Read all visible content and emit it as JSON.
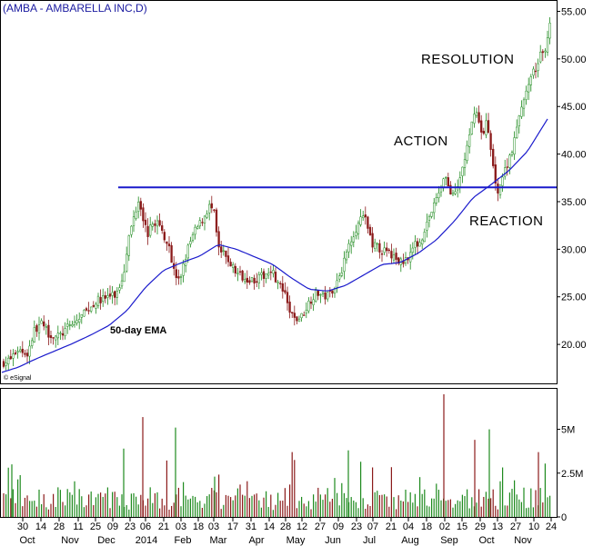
{
  "chart_data": {
    "type": "candlestick",
    "title": "(AMBA - AMBARELLA INC,D)",
    "source": "© eSignal",
    "price_axis": {
      "ylim": [
        16.0,
        56.0
      ],
      "ticks": [
        20,
        25,
        30,
        35,
        40,
        45,
        50,
        55
      ],
      "tick_labels": [
        "20.00",
        "25.00",
        "30.00",
        "35.00",
        "40.00",
        "45.00",
        "50.00",
        "55.00"
      ]
    },
    "volume_axis": {
      "ylim": [
        0,
        7000000
      ],
      "ticks": [
        0,
        2500000,
        5000000
      ],
      "tick_labels": [
        "0",
        "2.5M",
        "5M"
      ]
    },
    "x_day_labels": [
      "30",
      "14",
      "28",
      "11",
      "25",
      "09",
      "23",
      "06",
      "21",
      "03",
      "18",
      "03",
      "17",
      "31",
      "14",
      "28",
      "12",
      "27",
      "09",
      "23",
      "07",
      "21",
      "04",
      "18",
      "02",
      "15",
      "29",
      "13",
      "27",
      "10",
      "24"
    ],
    "x_month_labels": [
      "Oct",
      "Nov",
      "Dec",
      "2014",
      "Feb",
      "Mar",
      "Apr",
      "May",
      "Jun",
      "Jul",
      "Aug",
      "Sep",
      "Oct",
      "Nov"
    ],
    "resistance_line": {
      "value": 36.5
    },
    "annotations": [
      "RESOLUTION",
      "ACTION",
      "REACTION",
      "50-day EMA"
    ],
    "colors": {
      "up": "#1e8a1e",
      "down": "#8b1a1a",
      "ema": "#1a1acc",
      "resistance": "#1a1acc",
      "title": "#1a1aa0"
    },
    "price_path": [
      [
        0,
        18.0
      ],
      [
        10,
        18.3
      ],
      [
        20,
        19.5
      ],
      [
        30,
        19.0
      ],
      [
        38,
        21.5
      ],
      [
        45,
        22.2
      ],
      [
        55,
        21.0
      ],
      [
        65,
        20.8
      ],
      [
        75,
        21.8
      ],
      [
        85,
        22.5
      ],
      [
        95,
        23.5
      ],
      [
        105,
        24.5
      ],
      [
        118,
        25.0
      ],
      [
        128,
        25.2
      ],
      [
        136,
        27.5
      ],
      [
        140,
        30.5
      ],
      [
        146,
        33.0
      ],
      [
        153,
        35.5
      ],
      [
        157,
        33.5
      ],
      [
        162,
        31.5
      ],
      [
        167,
        32.5
      ],
      [
        172,
        33.0
      ],
      [
        180,
        31.5
      ],
      [
        186,
        30.5
      ],
      [
        190,
        28.0
      ],
      [
        197,
        26.5
      ],
      [
        202,
        28.5
      ],
      [
        208,
        30.5
      ],
      [
        215,
        32.0
      ],
      [
        222,
        33.0
      ],
      [
        230,
        34.5
      ],
      [
        235,
        34.0
      ],
      [
        240,
        30.0
      ],
      [
        250,
        29.0
      ],
      [
        260,
        27.5
      ],
      [
        270,
        27.0
      ],
      [
        280,
        26.8
      ],
      [
        290,
        27.2
      ],
      [
        298,
        28.0
      ],
      [
        305,
        26.5
      ],
      [
        312,
        25.5
      ],
      [
        318,
        23.5
      ],
      [
        325,
        22.5
      ],
      [
        332,
        23.0
      ],
      [
        340,
        24.5
      ],
      [
        348,
        25.5
      ],
      [
        356,
        25.0
      ],
      [
        362,
        25.3
      ],
      [
        370,
        26.5
      ],
      [
        378,
        28.5
      ],
      [
        385,
        31.0
      ],
      [
        393,
        32.5
      ],
      [
        400,
        33.5
      ],
      [
        405,
        32.0
      ],
      [
        410,
        30.5
      ],
      [
        418,
        30.0
      ],
      [
        428,
        29.5
      ],
      [
        435,
        29.0
      ],
      [
        442,
        28.5
      ],
      [
        450,
        29.5
      ],
      [
        457,
        30.5
      ],
      [
        463,
        31.0
      ],
      [
        470,
        33.0
      ],
      [
        477,
        34.5
      ],
      [
        484,
        36.5
      ],
      [
        490,
        38.0
      ],
      [
        494,
        36.0
      ],
      [
        498,
        35.5
      ],
      [
        502,
        36.0
      ],
      [
        507,
        38.0
      ],
      [
        512,
        40.0
      ],
      [
        517,
        42.0
      ],
      [
        522,
        45.0
      ],
      [
        526,
        43.5
      ],
      [
        530,
        42.0
      ],
      [
        535,
        43.5
      ],
      [
        540,
        40.0
      ],
      [
        544,
        37.5
      ],
      [
        548,
        36.0
      ],
      [
        552,
        37.5
      ],
      [
        556,
        38.5
      ],
      [
        561,
        40.0
      ],
      [
        566,
        41.5
      ],
      [
        571,
        44.0
      ],
      [
        576,
        46.0
      ],
      [
        581,
        47.0
      ],
      [
        586,
        48.5
      ],
      [
        591,
        49.5
      ],
      [
        595,
        50.5
      ],
      [
        600,
        51.0
      ],
      [
        604,
        54.0
      ]
    ],
    "ema_path": [
      [
        0,
        17.0
      ],
      [
        20,
        17.6
      ],
      [
        40,
        18.5
      ],
      [
        60,
        19.3
      ],
      [
        80,
        20.1
      ],
      [
        100,
        21.0
      ],
      [
        120,
        22.0
      ],
      [
        140,
        23.6
      ],
      [
        160,
        26.0
      ],
      [
        180,
        27.8
      ],
      [
        200,
        28.6
      ],
      [
        220,
        29.3
      ],
      [
        240,
        30.5
      ],
      [
        260,
        30.0
      ],
      [
        280,
        29.2
      ],
      [
        300,
        28.4
      ],
      [
        320,
        27.0
      ],
      [
        340,
        25.8
      ],
      [
        360,
        25.6
      ],
      [
        380,
        26.2
      ],
      [
        400,
        27.3
      ],
      [
        420,
        28.4
      ],
      [
        440,
        28.6
      ],
      [
        460,
        29.6
      ],
      [
        480,
        31.0
      ],
      [
        500,
        33.0
      ],
      [
        520,
        35.4
      ],
      [
        540,
        36.8
      ],
      [
        560,
        38.3
      ],
      [
        580,
        40.3
      ],
      [
        604,
        44.0
      ]
    ]
  }
}
